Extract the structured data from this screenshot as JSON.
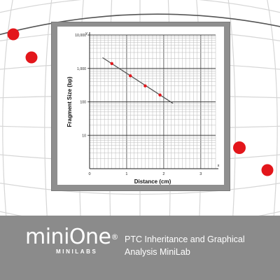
{
  "brand": {
    "logo_text": "miniOne",
    "logo_registered": "®",
    "logo_sub": "MINILABS",
    "tagline": "PTC Inheritance and Graphical Analysis MiniLab",
    "accent_color": "#e3161b"
  },
  "chart_data": {
    "type": "scatter",
    "title": "",
    "xlabel": "Distance (cm)",
    "ylabel": "Fragment Size (bp)",
    "x_ticks": [
      "0",
      "1",
      "2",
      "3"
    ],
    "x_axis_end_label": "x",
    "y_ticks": [
      "10",
      "100",
      "1,000",
      "10,000"
    ],
    "y_axis_end_label": "y",
    "y_scale": "log",
    "xlim": [
      0,
      3.4
    ],
    "ylim": [
      1,
      10000
    ],
    "grid": true,
    "series": [
      {
        "points": [
          {
            "x": 0.6,
            "y": 1400
          },
          {
            "x": 1.1,
            "y": 600
          },
          {
            "x": 1.5,
            "y": 300
          },
          {
            "x": 1.9,
            "y": 160
          }
        ]
      }
    ],
    "fit_line": {
      "x": [
        0.35,
        2.25
      ],
      "y": [
        2100,
        90
      ]
    }
  }
}
